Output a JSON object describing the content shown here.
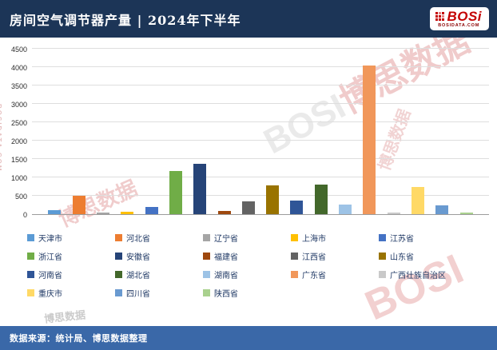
{
  "header": {
    "title": "房间空气调节器产量 | 2024年下半年",
    "logo_text": "BOSi",
    "logo_subtext": "BOSIDATA.COM"
  },
  "chart_data": {
    "type": "bar",
    "title": "房间空气调节器产量 | 2024年下半年",
    "ylabel": "",
    "xlabel": "",
    "ylim": [
      0,
      4500
    ],
    "ytick_step": 500,
    "yticks": [
      0,
      500,
      1000,
      1500,
      2000,
      2500,
      3000,
      3500,
      4000,
      4500
    ],
    "grid": true,
    "legend_position": "bottom",
    "series": [
      {
        "name": "天津市",
        "value": 100,
        "color": "#5B9BD5"
      },
      {
        "name": "河北省",
        "value": 500,
        "color": "#ED7D31"
      },
      {
        "name": "辽宁省",
        "value": 50,
        "color": "#A5A5A5"
      },
      {
        "name": "上海市",
        "value": 60,
        "color": "#FFC000"
      },
      {
        "name": "江苏省",
        "value": 200,
        "color": "#4472C4"
      },
      {
        "name": "浙江省",
        "value": 1170,
        "color": "#70AD47"
      },
      {
        "name": "安徽省",
        "value": 1380,
        "color": "#264478"
      },
      {
        "name": "福建省",
        "value": 80,
        "color": "#9E480E"
      },
      {
        "name": "江西省",
        "value": 350,
        "color": "#636363"
      },
      {
        "name": "山东省",
        "value": 780,
        "color": "#997300"
      },
      {
        "name": "河南省",
        "value": 380,
        "color": "#2F5597"
      },
      {
        "name": "湖北省",
        "value": 800,
        "color": "#43682B"
      },
      {
        "name": "湖南省",
        "value": 270,
        "color": "#9DC3E6"
      },
      {
        "name": "广东省",
        "value": 4050,
        "color": "#F1975A"
      },
      {
        "name": "广西壮族自治区",
        "value": 15,
        "color": "#C9C9C9"
      },
      {
        "name": "重庆市",
        "value": 750,
        "color": "#FFD966"
      },
      {
        "name": "四川省",
        "value": 240,
        "color": "#699AD0"
      },
      {
        "name": "陕西省",
        "value": 30,
        "color": "#A9D18E"
      }
    ]
  },
  "footer": {
    "source": "数据来源：统计局、博思数据整理"
  },
  "watermark": {
    "brand": "BOSI",
    "cn": "博思数据",
    "url": "BOSIDATA.COM"
  }
}
